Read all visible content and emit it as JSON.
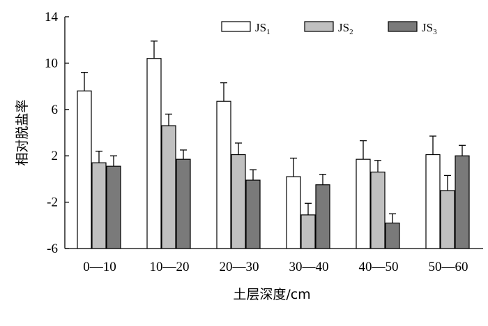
{
  "chart_data": {
    "type": "bar",
    "categories": [
      "0—10",
      "10—20",
      "20—30",
      "30—40",
      "40—50",
      "50—60"
    ],
    "series": [
      {
        "name": "JS",
        "subscript": "1",
        "color": "#ffffff",
        "values": [
          7.6,
          10.4,
          6.7,
          0.2,
          1.7,
          2.1
        ],
        "errors": [
          1.6,
          1.5,
          1.6,
          1.6,
          1.6,
          1.6
        ]
      },
      {
        "name": "JS",
        "subscript": "2",
        "color": "#c0c0c0",
        "values": [
          1.4,
          4.6,
          2.1,
          -3.1,
          0.6,
          -1.0
        ],
        "errors": [
          1.0,
          1.0,
          1.0,
          1.0,
          1.0,
          1.3
        ]
      },
      {
        "name": "JS",
        "subscript": "3",
        "color": "#7a7a7a",
        "values": [
          1.1,
          1.7,
          -0.1,
          -0.5,
          -3.8,
          2.0
        ],
        "errors": [
          0.9,
          0.8,
          0.9,
          0.9,
          0.8,
          0.9
        ]
      }
    ],
    "yticks": [
      "14",
      "10",
      "6",
      "2",
      "-2",
      "-6"
    ],
    "ylim": [
      -6,
      14
    ],
    "ylabel": "相对脱盐率",
    "xlabel": "土层深度/cm",
    "legend_position": "top-right",
    "grid": false
  }
}
